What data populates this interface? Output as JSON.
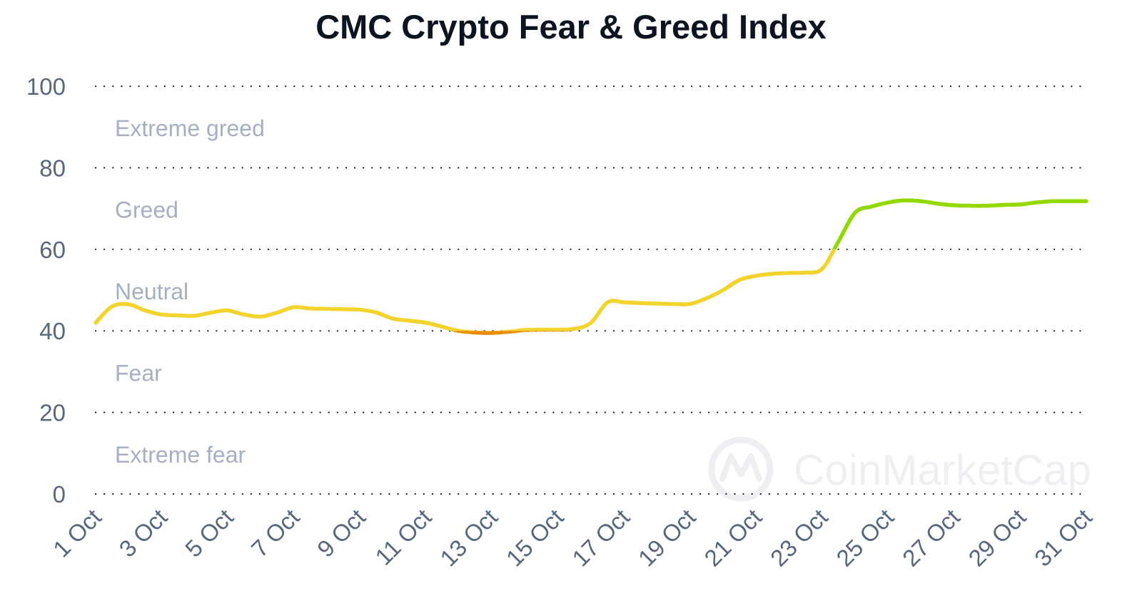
{
  "chart_data": {
    "type": "line",
    "title": "CMC Crypto Fear & Greed Index",
    "xlabel": "",
    "ylabel": "",
    "ylim": [
      0,
      100
    ],
    "yticks": [
      0,
      20,
      40,
      60,
      80,
      100
    ],
    "grid": "horizontal dotted",
    "xticks": [
      "1 Oct",
      "3 Oct",
      "5 Oct",
      "7 Oct",
      "9 Oct",
      "11 Oct",
      "13 Oct",
      "15 Oct",
      "17 Oct",
      "19 Oct",
      "21 Oct",
      "23 Oct",
      "25 Oct",
      "27 Oct",
      "29 Oct",
      "31 Oct"
    ],
    "zones": [
      "Extreme greed",
      "Greed",
      "Neutral",
      "Fear",
      "Extreme fear"
    ],
    "zone_bounds": [
      [
        80,
        100
      ],
      [
        60,
        80
      ],
      [
        40,
        60
      ],
      [
        20,
        40
      ],
      [
        0,
        20
      ]
    ],
    "watermark": "CoinMarketCap",
    "series": [
      {
        "x": [
          1,
          1.5,
          2,
          2.5,
          3,
          3.5,
          4,
          4.5,
          5,
          5.5,
          6,
          6.5,
          7,
          7.5,
          8,
          8.5,
          9,
          9.5,
          10,
          10.5,
          11,
          11.5,
          12,
          12.5,
          13,
          13.5,
          14,
          14.5,
          15,
          15.5,
          16,
          16.5,
          17,
          17.5,
          18,
          18.5,
          19,
          19.5,
          20,
          20.5,
          21,
          21.5,
          22,
          22.5,
          23,
          23.5,
          24,
          24.5,
          25,
          25.5,
          26,
          26.5,
          27,
          27.5,
          28,
          28.5,
          29,
          29.5,
          30,
          30.5,
          31
        ],
        "values": [
          42,
          46,
          46.5,
          45,
          44,
          43.8,
          43.7,
          44.5,
          45,
          44,
          43.5,
          44.5,
          45.8,
          45.5,
          45.4,
          45.3,
          45.2,
          44.5,
          43,
          42.5,
          42,
          41,
          40,
          39.6,
          39.5,
          39.8,
          40.2,
          40.3,
          40.3,
          40.5,
          42,
          47,
          47,
          46.8,
          46.7,
          46.6,
          46.6,
          48,
          50,
          52.5,
          53.5,
          54,
          54.2,
          54.3,
          55.2,
          62,
          69,
          70.5,
          71.5,
          72,
          71.8,
          71.2,
          70.8,
          70.7,
          70.7,
          70.9,
          71,
          71.5,
          71.8,
          71.8,
          71.8
        ]
      }
    ],
    "colors": {
      "extreme_fear": "#ea3943",
      "fear": "#ea8c00",
      "neutral": "#f3d42f",
      "greed": "#93d900",
      "extreme_greed": "#16c784",
      "grid": "#1f1f1f",
      "tick_text": "#58667e",
      "zone_text": "#a6b0c3",
      "title_text": "#0d1421",
      "watermark": "#eeeff2"
    }
  }
}
